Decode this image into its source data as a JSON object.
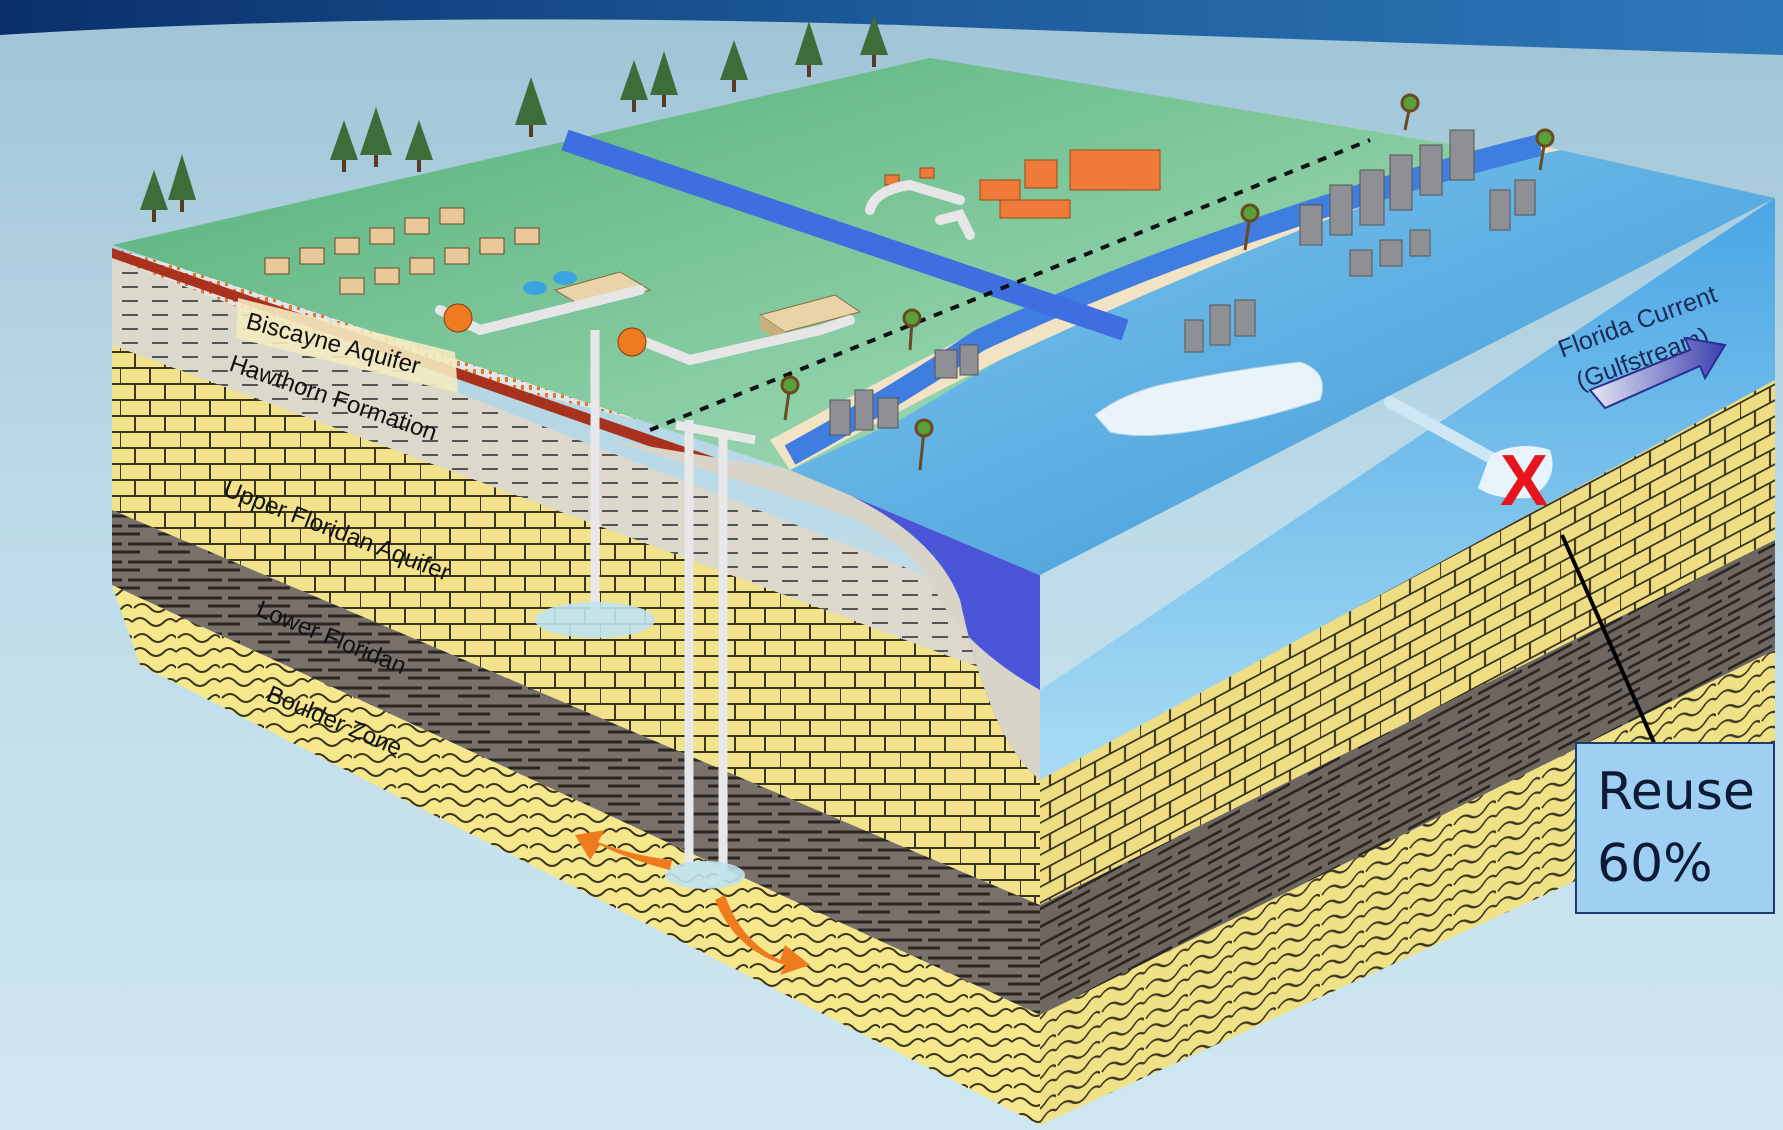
{
  "labels": {
    "biscayne": "Biscayne Aquifer",
    "hawthorn": "Hawthorn Formation",
    "upper_floridan": "Upper Floridan Aquifer",
    "lower_floridan": "Lower Floridan",
    "boulder": "Boulder Zone",
    "current_line1": "Florida Current",
    "current_line2": "(Gulfstream)",
    "x_mark": "X"
  },
  "callout": {
    "line1": "Reuse",
    "line2": "60%"
  },
  "colors": {
    "land": "#7cc39a",
    "ocean": "#5aaee0",
    "deep_blue": "#4b55d8",
    "limestone": "#f2e38a",
    "shale": "#6e6560",
    "pipe_orange": "#f07a1e",
    "x_mark": "#e8141c"
  }
}
